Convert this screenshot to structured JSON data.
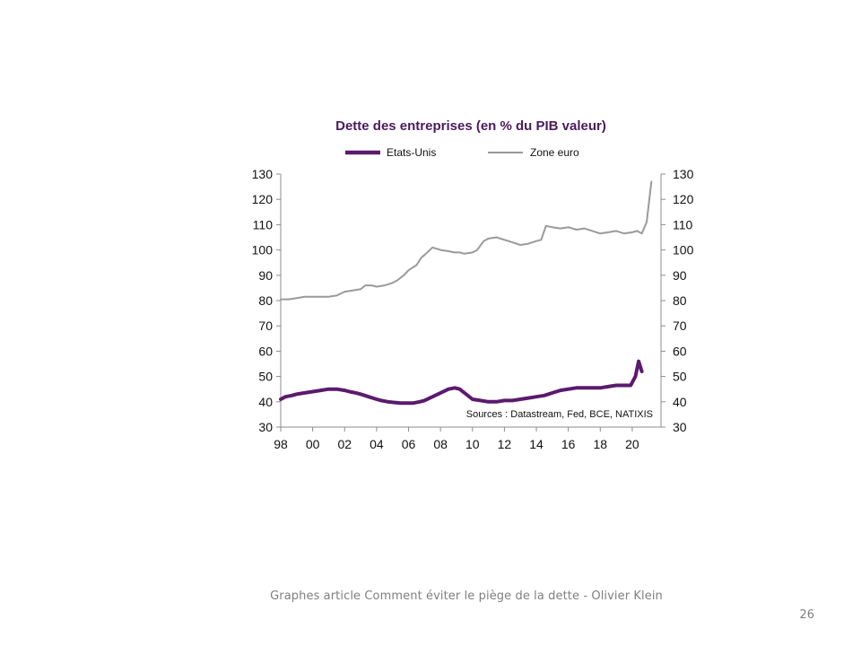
{
  "slide": {
    "caption": "Graphes article Comment  éviter le piège de la dette - Olivier Klein",
    "number": "26"
  },
  "chart_data": {
    "type": "line",
    "title": "Dette des entreprises (en % du PIB valeur)",
    "source": "Sources  : Datastream,  Fed, BCE, NATIXIS",
    "x_tick_labels": [
      "98",
      "00",
      "02",
      "04",
      "06",
      "08",
      "10",
      "12",
      "14",
      "16",
      "18",
      "20"
    ],
    "x_tick_years": [
      1998,
      2000,
      2002,
      2004,
      2006,
      2008,
      2010,
      2012,
      2014,
      2016,
      2018,
      2020
    ],
    "xlim": [
      1998,
      2021.8
    ],
    "y_ticks": [
      30,
      40,
      50,
      60,
      70,
      80,
      90,
      100,
      110,
      120,
      130
    ],
    "ylim": [
      30,
      130
    ],
    "y_axis_left_labels": [
      "30",
      "40",
      "50",
      "60",
      "70",
      "80",
      "90",
      "100",
      "110",
      "120",
      "130"
    ],
    "y_axis_right_labels": [
      "30",
      "40",
      "50",
      "60",
      "70",
      "80",
      "90",
      "100",
      "110",
      "120",
      "130"
    ],
    "legend_position": "top",
    "grid": false,
    "series": [
      {
        "name": "Etats-Unis",
        "color": "#5b1a6e",
        "x": [
          1998.0,
          1998.3,
          1998.7,
          1999.0,
          1999.5,
          2000.0,
          2000.5,
          2001.0,
          2001.5,
          2002.0,
          2002.3,
          2002.7,
          2003.0,
          2003.5,
          2004.0,
          2004.3,
          2004.7,
          2005.0,
          2005.5,
          2006.0,
          2006.3,
          2006.7,
          2007.0,
          2007.5,
          2008.0,
          2008.5,
          2008.9,
          2009.2,
          2009.6,
          2010.0,
          2010.5,
          2011.0,
          2011.5,
          2012.0,
          2012.5,
          2013.0,
          2013.5,
          2014.0,
          2014.5,
          2015.0,
          2015.5,
          2016.0,
          2016.5,
          2017.0,
          2017.5,
          2018.0,
          2018.5,
          2019.0,
          2019.5,
          2019.9,
          2020.2,
          2020.4,
          2020.6
        ],
        "values": [
          41.0,
          42.0,
          42.5,
          43.0,
          43.5,
          44.0,
          44.5,
          45.0,
          45.0,
          44.5,
          44.0,
          43.5,
          43.0,
          42.0,
          41.0,
          40.5,
          40.0,
          39.8,
          39.5,
          39.5,
          39.5,
          40.0,
          40.5,
          42.0,
          43.5,
          45.0,
          45.5,
          45.0,
          43.0,
          41.0,
          40.5,
          40.0,
          40.0,
          40.5,
          40.5,
          41.0,
          41.5,
          42.0,
          42.5,
          43.5,
          44.5,
          45.0,
          45.5,
          45.5,
          45.5,
          45.5,
          46.0,
          46.5,
          46.5,
          46.5,
          50.0,
          56.0,
          52.0
        ]
      },
      {
        "name": "Zone euro",
        "color": "#9a9a9a",
        "x": [
          1998.0,
          1998.5,
          1999.0,
          1999.5,
          2000.0,
          2000.5,
          2001.0,
          2001.5,
          2002.0,
          2002.5,
          2003.0,
          2003.3,
          2003.7,
          2004.0,
          2004.5,
          2005.0,
          2005.3,
          2005.7,
          2006.0,
          2006.5,
          2006.8,
          2007.0,
          2007.5,
          2008.0,
          2008.5,
          2008.9,
          2009.2,
          2009.5,
          2010.0,
          2010.3,
          2010.7,
          2011.0,
          2011.5,
          2012.0,
          2012.5,
          2013.0,
          2013.5,
          2014.0,
          2014.3,
          2014.6,
          2015.0,
          2015.5,
          2016.0,
          2016.5,
          2017.0,
          2017.5,
          2018.0,
          2018.5,
          2019.0,
          2019.5,
          2020.0,
          2020.3,
          2020.6,
          2020.9,
          2021.2
        ],
        "values": [
          80.5,
          80.5,
          81.0,
          81.5,
          81.5,
          81.5,
          81.5,
          82.0,
          83.5,
          84.0,
          84.5,
          86.0,
          86.0,
          85.5,
          86.0,
          87.0,
          88.0,
          90.0,
          92.0,
          94.0,
          97.0,
          98.0,
          101.0,
          100.0,
          99.5,
          99.0,
          99.0,
          98.5,
          99.0,
          100.0,
          103.5,
          104.5,
          105.0,
          104.0,
          103.0,
          102.0,
          102.5,
          103.5,
          104.0,
          109.5,
          109.0,
          108.5,
          109.0,
          108.0,
          108.5,
          107.5,
          106.5,
          107.0,
          107.5,
          106.5,
          107.0,
          107.5,
          106.5,
          111.0,
          127.0
        ]
      }
    ]
  }
}
